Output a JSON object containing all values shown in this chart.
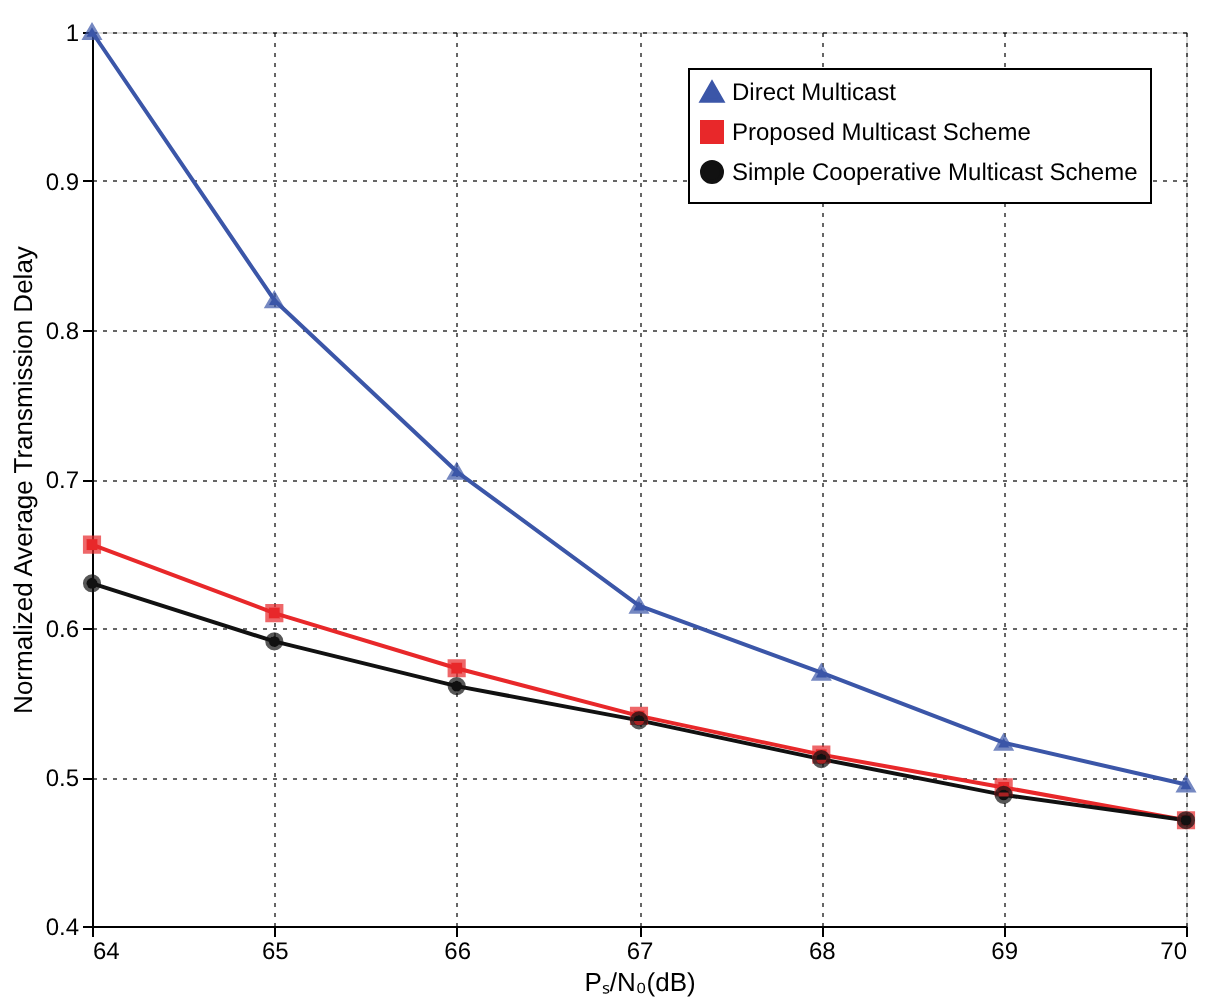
{
  "chart_data": {
    "type": "line",
    "xlabel": "Pₛ/N₀(dB)",
    "ylabel": "Normalized  Average Transmission Delay",
    "x": [
      64,
      65,
      66,
      67,
      68,
      69,
      70
    ],
    "series": [
      {
        "name": "Direct Multicast",
        "color": "#3b56a8",
        "marker": "triangle",
        "values": [
          1.0,
          0.82,
          0.705,
          0.615,
          0.57,
          0.523,
          0.495
        ]
      },
      {
        "name": "Proposed Multicast Scheme",
        "color": "#e8282a",
        "marker": "square",
        "values": [
          0.656,
          0.61,
          0.573,
          0.541,
          0.515,
          0.493,
          0.471
        ]
      },
      {
        "name": "Simple Cooperative Multicast Scheme",
        "color": "#111111",
        "marker": "circle",
        "values": [
          0.63,
          0.591,
          0.561,
          0.538,
          0.512,
          0.488,
          0.471
        ]
      }
    ],
    "xlim": [
      64,
      70
    ],
    "xticks": [
      64,
      65,
      66,
      67,
      68,
      69,
      70
    ],
    "ylim": [
      0.4,
      1
    ],
    "yticks": [
      0.4,
      0.5,
      0.6,
      0.7,
      0.8,
      0.9,
      1
    ],
    "grid": true,
    "legend": "top right",
    "line_style": "solid"
  }
}
